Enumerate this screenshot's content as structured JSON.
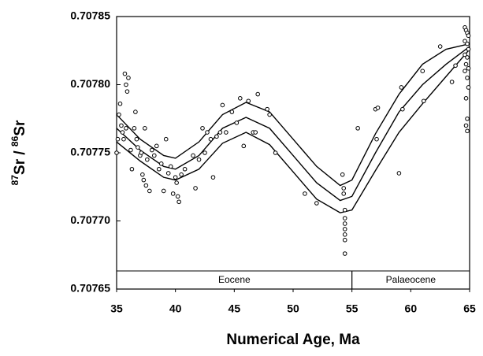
{
  "chart_data": {
    "type": "scatter",
    "x_label": "Numerical Age,  Ma",
    "y_label_parts": [
      "87",
      "Sr / ",
      "86",
      "Sr"
    ],
    "xlim": [
      35,
      65
    ],
    "xticks": [
      35,
      40,
      45,
      50,
      55,
      60,
      65
    ],
    "ylim": [
      0.70765,
      0.70785
    ],
    "yticks": [
      0.70765,
      {
        "value": 0.7077,
        "label": "0.70770"
      },
      0.70775,
      {
        "value": 0.7078,
        "label": "0.70780"
      },
      0.70785
    ],
    "color": "#000000",
    "epochs": [
      {
        "name": "Eocene",
        "start": 35,
        "end": 55
      },
      {
        "name": "Palaeocene",
        "start": 55,
        "end": 65
      }
    ],
    "x": [
      35,
      35.1,
      35.2,
      35.3,
      35.4,
      35.5,
      35.6,
      35.7,
      35.8,
      35.9,
      36,
      35.8,
      36.2,
      36.3,
      36.5,
      36.6,
      36.7,
      36.8,
      37,
      37.1,
      37.2,
      37.3,
      37.4,
      37.5,
      37.6,
      37.8,
      38,
      38.2,
      38.4,
      38.6,
      38.8,
      39,
      39.2,
      39.4,
      39.6,
      39.8,
      40,
      40.1,
      40.2,
      40.3,
      40.5,
      40.8,
      41.5,
      41.7,
      42,
      42.3,
      42.5,
      42.7,
      43,
      43.2,
      43.5,
      43.8,
      44,
      44.3,
      44.8,
      45.2,
      45.5,
      45.8,
      46.2,
      46.6,
      46.8,
      47,
      47.8,
      48,
      48.5,
      51,
      52,
      54.2,
      54.3,
      54.3,
      54.4,
      54.4,
      54.4,
      54.4,
      54.4,
      54.4,
      54.4,
      55.5,
      57,
      57.1,
      57.2,
      59,
      59.2,
      59.3,
      61,
      61.1,
      62.5,
      63.5,
      63.8,
      64.6,
      64.7,
      64.8,
      64.9,
      64.6,
      64.8,
      64.9,
      64.6,
      64.8,
      64.7,
      64.9,
      64.6,
      64.8,
      64.9,
      64.7,
      64.8,
      64.7,
      64.8
    ],
    "values": [
      0.70775,
      0.70776,
      0.707778,
      0.707786,
      0.70777,
      0.707765,
      0.70776,
      0.707808,
      0.7078,
      0.707795,
      0.707805,
      0.707768,
      0.707752,
      0.707738,
      0.707768,
      0.70778,
      0.70776,
      0.707754,
      0.707748,
      0.70775,
      0.707734,
      0.70773,
      0.707768,
      0.707726,
      0.707745,
      0.707722,
      0.707752,
      0.707748,
      0.707755,
      0.707738,
      0.707742,
      0.707722,
      0.70776,
      0.707735,
      0.70774,
      0.70772,
      0.707732,
      0.707728,
      0.707718,
      0.707714,
      0.707734,
      0.707738,
      0.707748,
      0.707724,
      0.707745,
      0.707768,
      0.70775,
      0.707765,
      0.70776,
      0.707732,
      0.707762,
      0.707765,
      0.707785,
      0.707765,
      0.70778,
      0.707772,
      0.70779,
      0.707755,
      0.707788,
      0.707765,
      0.707765,
      0.707793,
      0.707782,
      0.707778,
      0.70775,
      0.70772,
      0.707713,
      0.707734,
      0.707724,
      0.70772,
      0.707708,
      0.707702,
      0.707698,
      0.707694,
      0.70769,
      0.707686,
      0.707676,
      0.707768,
      0.707782,
      0.70776,
      0.707783,
      0.707735,
      0.707798,
      0.707782,
      0.70781,
      0.707788,
      0.707828,
      0.707802,
      0.707814,
      0.707842,
      0.70784,
      0.707838,
      0.707836,
      0.707832,
      0.70783,
      0.707826,
      0.707822,
      0.70782,
      0.707815,
      0.707812,
      0.70781,
      0.707805,
      0.707798,
      0.70779,
      0.707775,
      0.70777,
      0.707766
    ],
    "curve_x": [
      35,
      37,
      39,
      40,
      42,
      44,
      46,
      48,
      50,
      52,
      54,
      55,
      57,
      59,
      61,
      63,
      65
    ],
    "curves": [
      {
        "values": [
          0.707778,
          0.70776,
          0.707748,
          0.707746,
          0.707758,
          0.707778,
          0.707787,
          0.70778,
          0.70776,
          0.70774,
          0.707726,
          0.70773,
          0.707764,
          0.707793,
          0.707815,
          0.707826,
          0.70783
        ]
      },
      {
        "values": [
          0.707768,
          0.707752,
          0.70774,
          0.707738,
          0.707748,
          0.707768,
          0.707776,
          0.707768,
          0.707748,
          0.707728,
          0.707715,
          0.707718,
          0.70775,
          0.70778,
          0.7078,
          0.707815,
          0.707828
        ]
      },
      {
        "values": [
          0.707758,
          0.707744,
          0.707732,
          0.70773,
          0.707738,
          0.707757,
          0.707765,
          0.707756,
          0.707736,
          0.707716,
          0.707706,
          0.707708,
          0.707737,
          0.707765,
          0.707786,
          0.707806,
          0.707826
        ]
      }
    ]
  }
}
